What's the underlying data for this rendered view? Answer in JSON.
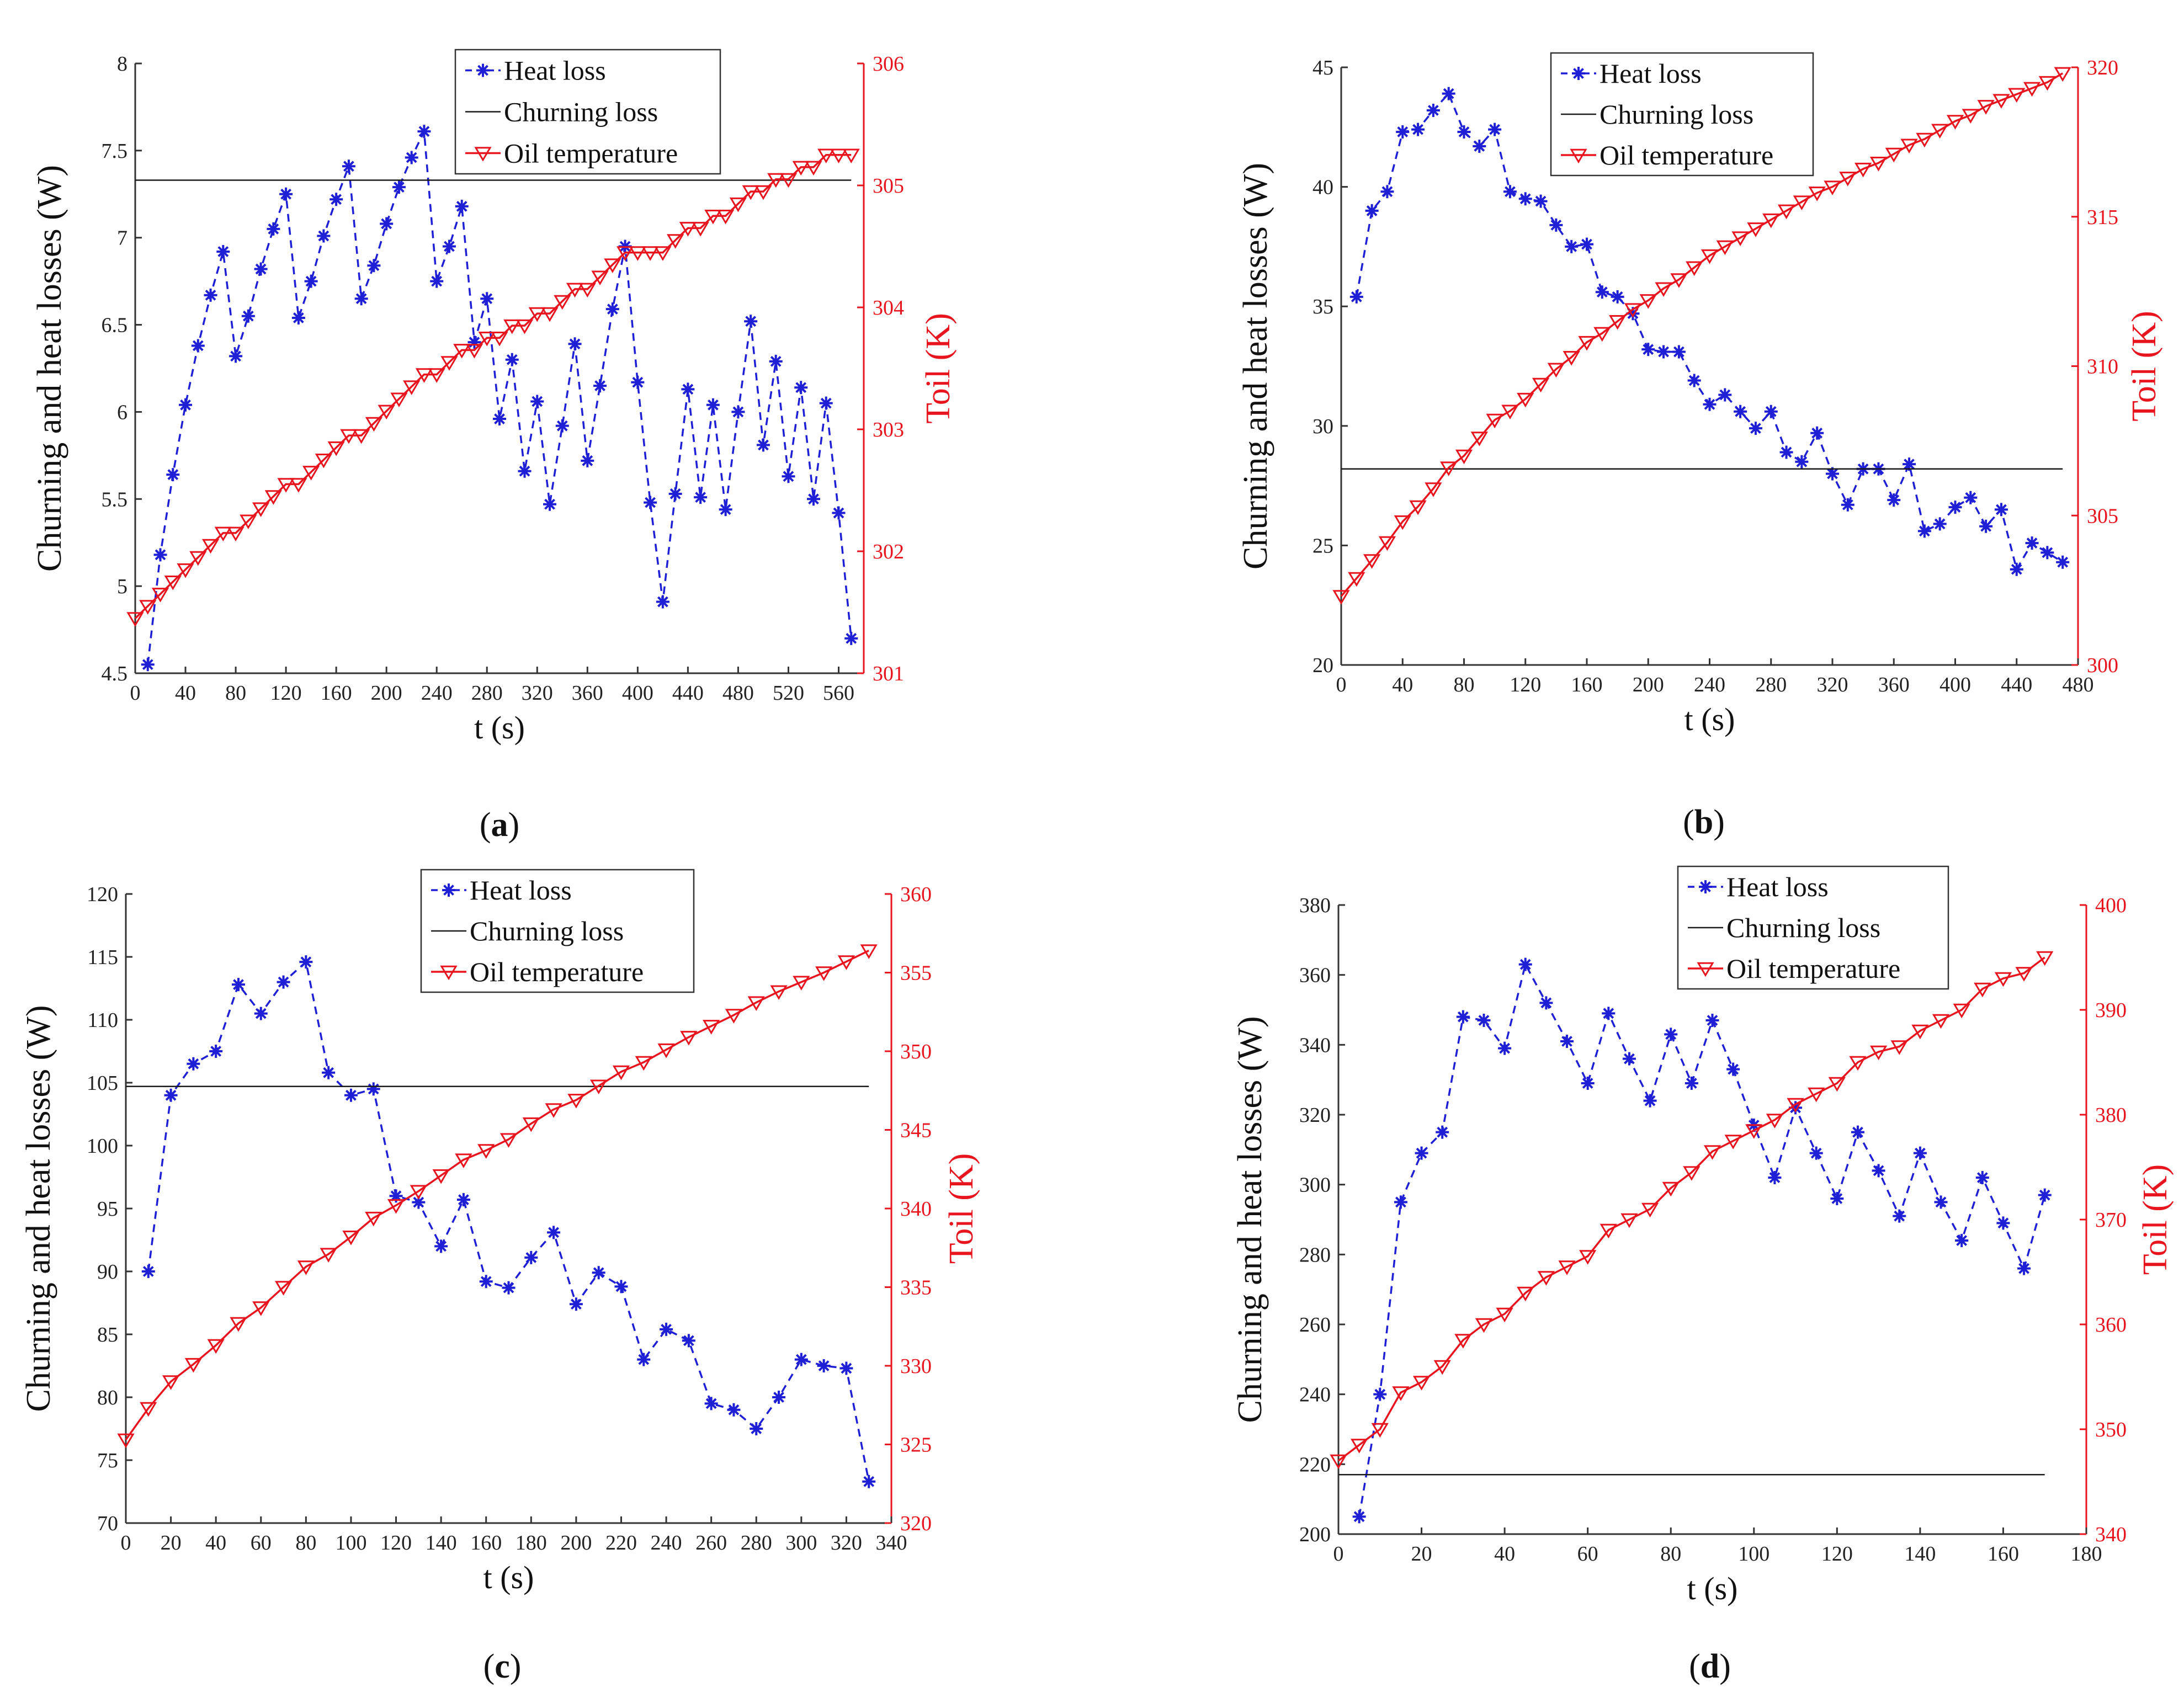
{
  "chart_data": [
    {
      "type": "line",
      "panel_label": "a",
      "xlabel": "t (s)",
      "ylabel": "Churning and heat losses (W)",
      "ylabel_right": "Toil (K)",
      "xlim": [
        0,
        580
      ],
      "ylim": [
        4.5,
        8
      ],
      "ylim_right": [
        301,
        306
      ],
      "x_ticks": [
        0,
        40,
        80,
        120,
        160,
        200,
        240,
        280,
        320,
        360,
        400,
        440,
        480,
        520,
        560
      ],
      "y_ticks": [
        4.5,
        5,
        5.5,
        6,
        6.5,
        7,
        7.5,
        8
      ],
      "y_ticks_right": [
        301,
        302,
        303,
        304,
        305,
        306
      ],
      "legend_position": "top-center",
      "series": [
        {
          "name": "Heat loss",
          "axis": "left",
          "color": "#1f1fd6",
          "style": "dashed-asterisk",
          "x": [
            10,
            20,
            30,
            40,
            50,
            60,
            70,
            80,
            90,
            100,
            110,
            120,
            130,
            140,
            150,
            160,
            170,
            180,
            190,
            200,
            210,
            220,
            230,
            240,
            250,
            260,
            270,
            280,
            290,
            300,
            310,
            320,
            330,
            340,
            350,
            360,
            370,
            380,
            390,
            400,
            410,
            420,
            430,
            440,
            450,
            460,
            470,
            480,
            490,
            500,
            510,
            520,
            530,
            540,
            550,
            560,
            570
          ],
          "y": [
            4.55,
            5.18,
            5.64,
            6.04,
            6.38,
            6.67,
            6.92,
            6.32,
            6.55,
            6.82,
            7.05,
            7.25,
            6.54,
            6.75,
            7.01,
            7.22,
            7.41,
            6.65,
            6.84,
            7.08,
            7.29,
            7.46,
            7.61,
            6.75,
            6.95,
            7.18,
            6.4,
            6.65,
            5.96,
            6.3,
            5.66,
            6.06,
            5.47,
            5.92,
            6.39,
            5.72,
            6.15,
            6.59,
            6.95,
            6.17,
            5.48,
            4.91,
            5.53,
            6.13,
            5.51,
            6.04,
            5.44,
            6.0,
            6.52,
            5.81,
            6.29,
            5.63,
            6.14,
            5.5,
            6.05,
            5.42,
            4.7
          ]
        },
        {
          "name": "Churning loss",
          "axis": "left",
          "color": "#1a1a1a",
          "style": "solid",
          "x": [
            0,
            570
          ],
          "y": [
            7.33,
            7.33
          ]
        },
        {
          "name": "Oil temperature",
          "axis": "right",
          "color": "#e8141e",
          "style": "solid-triangle",
          "x": [
            0,
            10,
            20,
            30,
            40,
            50,
            60,
            70,
            80,
            90,
            100,
            110,
            120,
            130,
            140,
            150,
            160,
            170,
            180,
            190,
            200,
            210,
            220,
            230,
            240,
            250,
            260,
            270,
            280,
            290,
            300,
            310,
            320,
            330,
            340,
            350,
            360,
            370,
            380,
            390,
            400,
            410,
            420,
            430,
            440,
            450,
            460,
            470,
            480,
            490,
            500,
            510,
            520,
            530,
            540,
            550,
            560,
            570
          ],
          "y": [
            301.45,
            301.55,
            301.65,
            301.75,
            301.85,
            301.95,
            302.05,
            302.15,
            302.15,
            302.25,
            302.35,
            302.45,
            302.55,
            302.55,
            302.65,
            302.75,
            302.85,
            302.95,
            302.95,
            303.05,
            303.15,
            303.25,
            303.35,
            303.45,
            303.45,
            303.55,
            303.65,
            303.65,
            303.75,
            303.75,
            303.85,
            303.85,
            303.95,
            303.95,
            304.05,
            304.15,
            304.15,
            304.25,
            304.35,
            304.45,
            304.45,
            304.45,
            304.45,
            304.55,
            304.65,
            304.65,
            304.75,
            304.75,
            304.85,
            304.95,
            304.95,
            305.05,
            305.05,
            305.15,
            305.15,
            305.25,
            305.25,
            305.25
          ]
        }
      ]
    },
    {
      "type": "line",
      "panel_label": "b",
      "xlabel": "t (s)",
      "ylabel": "Churning and heat losses (W)",
      "ylabel_right": "Toil (K)",
      "xlim": [
        0,
        480
      ],
      "ylim": [
        20,
        45
      ],
      "ylim_right": [
        300,
        320
      ],
      "x_ticks": [
        0,
        40,
        80,
        120,
        160,
        200,
        240,
        280,
        320,
        360,
        400,
        440,
        480
      ],
      "y_ticks": [
        20,
        25,
        30,
        35,
        40,
        45
      ],
      "y_ticks_right": [
        300,
        305,
        310,
        315,
        320
      ],
      "legend_position": "top-center",
      "series": [
        {
          "name": "Heat loss",
          "axis": "left",
          "color": "#1f1fd6",
          "style": "dashed-asterisk",
          "x": [
            10,
            20,
            30,
            40,
            50,
            60,
            70,
            80,
            90,
            100,
            110,
            120,
            130,
            140,
            150,
            160,
            170,
            180,
            190,
            200,
            210,
            220,
            230,
            240,
            250,
            260,
            270,
            280,
            290,
            300,
            310,
            320,
            330,
            340,
            350,
            360,
            370,
            380,
            390,
            400,
            410,
            420,
            430,
            440,
            450,
            460,
            470
          ],
          "y": [
            35.4,
            39.0,
            39.8,
            42.3,
            42.4,
            43.2,
            43.9,
            42.3,
            41.7,
            42.4,
            39.8,
            39.5,
            39.4,
            38.4,
            37.5,
            37.6,
            35.6,
            35.4,
            34.7,
            33.2,
            33.1,
            33.1,
            31.9,
            30.9,
            31.3,
            30.6,
            29.9,
            30.6,
            28.9,
            28.5,
            29.7,
            28.0,
            26.7,
            28.2,
            28.2,
            26.9,
            28.4,
            25.6,
            25.9,
            26.6,
            27.0,
            25.8,
            26.5,
            24.0,
            25.1,
            24.7,
            24.3
          ]
        },
        {
          "name": "Churning loss",
          "axis": "left",
          "color": "#1a1a1a",
          "style": "solid",
          "x": [
            0,
            470
          ],
          "y": [
            28.2,
            28.2
          ]
        },
        {
          "name": "Oil temperature",
          "axis": "right",
          "color": "#e8141e",
          "style": "solid-triangle",
          "x": [
            0,
            10,
            20,
            30,
            40,
            50,
            60,
            70,
            80,
            90,
            100,
            110,
            120,
            130,
            140,
            150,
            160,
            170,
            180,
            190,
            200,
            210,
            220,
            230,
            240,
            250,
            260,
            270,
            280,
            290,
            300,
            310,
            320,
            330,
            340,
            350,
            360,
            370,
            380,
            390,
            400,
            410,
            420,
            430,
            440,
            450,
            460,
            470
          ],
          "y": [
            302.3,
            302.9,
            303.5,
            304.1,
            304.8,
            305.3,
            305.9,
            306.6,
            307.0,
            307.6,
            308.2,
            308.5,
            308.9,
            309.4,
            309.9,
            310.3,
            310.8,
            311.1,
            311.5,
            311.9,
            312.2,
            312.6,
            312.9,
            313.3,
            313.7,
            314.0,
            314.3,
            314.6,
            314.9,
            315.2,
            315.5,
            315.8,
            316.0,
            316.3,
            316.6,
            316.8,
            317.1,
            317.4,
            317.6,
            317.9,
            318.2,
            318.4,
            318.7,
            318.9,
            319.1,
            319.3,
            319.5,
            319.8
          ]
        }
      ]
    },
    {
      "type": "line",
      "panel_label": "c",
      "xlabel": "t (s)",
      "ylabel": "Churning and heat losses (W)",
      "ylabel_right": "Toil (K)",
      "xlim": [
        0,
        340
      ],
      "ylim": [
        70,
        120
      ],
      "ylim_right": [
        320,
        360
      ],
      "x_ticks": [
        0,
        20,
        40,
        60,
        80,
        100,
        120,
        140,
        160,
        180,
        200,
        220,
        240,
        260,
        280,
        300,
        320,
        340
      ],
      "y_ticks": [
        70,
        75,
        80,
        85,
        90,
        95,
        100,
        105,
        110,
        115,
        120
      ],
      "y_ticks_right": [
        320,
        325,
        330,
        335,
        340,
        345,
        350,
        355,
        360
      ],
      "legend_position": "top-center",
      "series": [
        {
          "name": "Heat loss",
          "axis": "left",
          "color": "#1f1fd6",
          "style": "dashed-asterisk",
          "x": [
            10,
            20,
            30,
            40,
            50,
            60,
            70,
            80,
            90,
            100,
            110,
            120,
            130,
            140,
            150,
            160,
            170,
            180,
            190,
            200,
            210,
            220,
            230,
            240,
            250,
            260,
            270,
            280,
            290,
            300,
            310,
            320,
            330
          ],
          "y": [
            90.0,
            104.0,
            106.5,
            107.5,
            112.8,
            110.5,
            113.0,
            114.6,
            105.8,
            104.0,
            104.5,
            96.0,
            95.5,
            92.0,
            95.7,
            89.2,
            88.7,
            91.1,
            93.1,
            87.4,
            89.9,
            88.8,
            83.0,
            85.4,
            84.5,
            79.5,
            79.0,
            77.5,
            80.0,
            83.0,
            82.5,
            82.3,
            73.3
          ]
        },
        {
          "name": "Churning loss",
          "axis": "left",
          "color": "#1a1a1a",
          "style": "solid",
          "x": [
            0,
            330
          ],
          "y": [
            104.7,
            104.7
          ]
        },
        {
          "name": "Oil temperature",
          "axis": "right",
          "color": "#e8141e",
          "style": "solid-triangle",
          "x": [
            0,
            10,
            20,
            30,
            40,
            50,
            60,
            70,
            80,
            90,
            100,
            110,
            120,
            130,
            140,
            150,
            160,
            170,
            180,
            190,
            200,
            210,
            220,
            230,
            240,
            250,
            260,
            270,
            280,
            290,
            300,
            310,
            320,
            330
          ],
          "y": [
            325.3,
            327.3,
            329.0,
            330.1,
            331.3,
            332.7,
            333.7,
            335.0,
            336.3,
            337.1,
            338.2,
            339.4,
            340.2,
            341.1,
            342.1,
            343.1,
            343.7,
            344.4,
            345.4,
            346.3,
            346.9,
            347.8,
            348.7,
            349.3,
            350.1,
            350.9,
            351.6,
            352.3,
            353.1,
            353.8,
            354.4,
            355.0,
            355.7,
            356.4
          ]
        }
      ]
    },
    {
      "type": "line",
      "panel_label": "d",
      "xlabel": "t (s)",
      "ylabel": "Churning and heat losses (W)",
      "ylabel_right": "Toil (K)",
      "xlim": [
        0,
        180
      ],
      "ylim": [
        200,
        380
      ],
      "ylim_right": [
        340,
        400
      ],
      "x_ticks": [
        0,
        20,
        40,
        60,
        80,
        100,
        120,
        140,
        160,
        180
      ],
      "y_ticks": [
        200,
        220,
        240,
        260,
        280,
        300,
        320,
        340,
        360,
        380
      ],
      "y_ticks_right": [
        340,
        350,
        360,
        370,
        380,
        390,
        400
      ],
      "legend_position": "top-center",
      "series": [
        {
          "name": "Heat loss",
          "axis": "left",
          "color": "#1f1fd6",
          "style": "dashed-asterisk",
          "x": [
            5,
            10,
            15,
            20,
            25,
            30,
            35,
            40,
            45,
            50,
            55,
            60,
            65,
            70,
            75,
            80,
            85,
            90,
            95,
            100,
            105,
            110,
            115,
            120,
            125,
            130,
            135,
            140,
            145,
            150,
            155,
            160,
            165,
            170
          ],
          "y": [
            205,
            240,
            295,
            309,
            315,
            348,
            347,
            339,
            363,
            352,
            341,
            329,
            349,
            336,
            324,
            343,
            329,
            347,
            333,
            317,
            302,
            322,
            309,
            296,
            315,
            304,
            291,
            309,
            295,
            284,
            302,
            289,
            276,
            297
          ]
        },
        {
          "name": "Churning loss",
          "axis": "left",
          "color": "#1a1a1a",
          "style": "solid",
          "x": [
            0,
            170
          ],
          "y": [
            217,
            217
          ]
        },
        {
          "name": "Oil temperature",
          "axis": "right",
          "color": "#e8141e",
          "style": "solid-triangle",
          "x": [
            0,
            5,
            10,
            15,
            20,
            25,
            30,
            35,
            40,
            45,
            50,
            55,
            60,
            65,
            70,
            75,
            80,
            85,
            90,
            95,
            100,
            105,
            110,
            115,
            120,
            125,
            130,
            135,
            140,
            145,
            150,
            155,
            160,
            165,
            170
          ],
          "y": [
            347.0,
            348.5,
            350.0,
            353.5,
            354.5,
            356.0,
            358.5,
            360.0,
            361.0,
            363.0,
            364.5,
            365.5,
            366.5,
            369.0,
            370.0,
            371.0,
            373.0,
            374.5,
            376.5,
            377.5,
            378.5,
            379.5,
            381.0,
            382.0,
            383.0,
            385.0,
            386.0,
            386.5,
            388.0,
            389.0,
            390.0,
            392.0,
            393.0,
            393.5,
            395.0
          ]
        }
      ]
    }
  ]
}
